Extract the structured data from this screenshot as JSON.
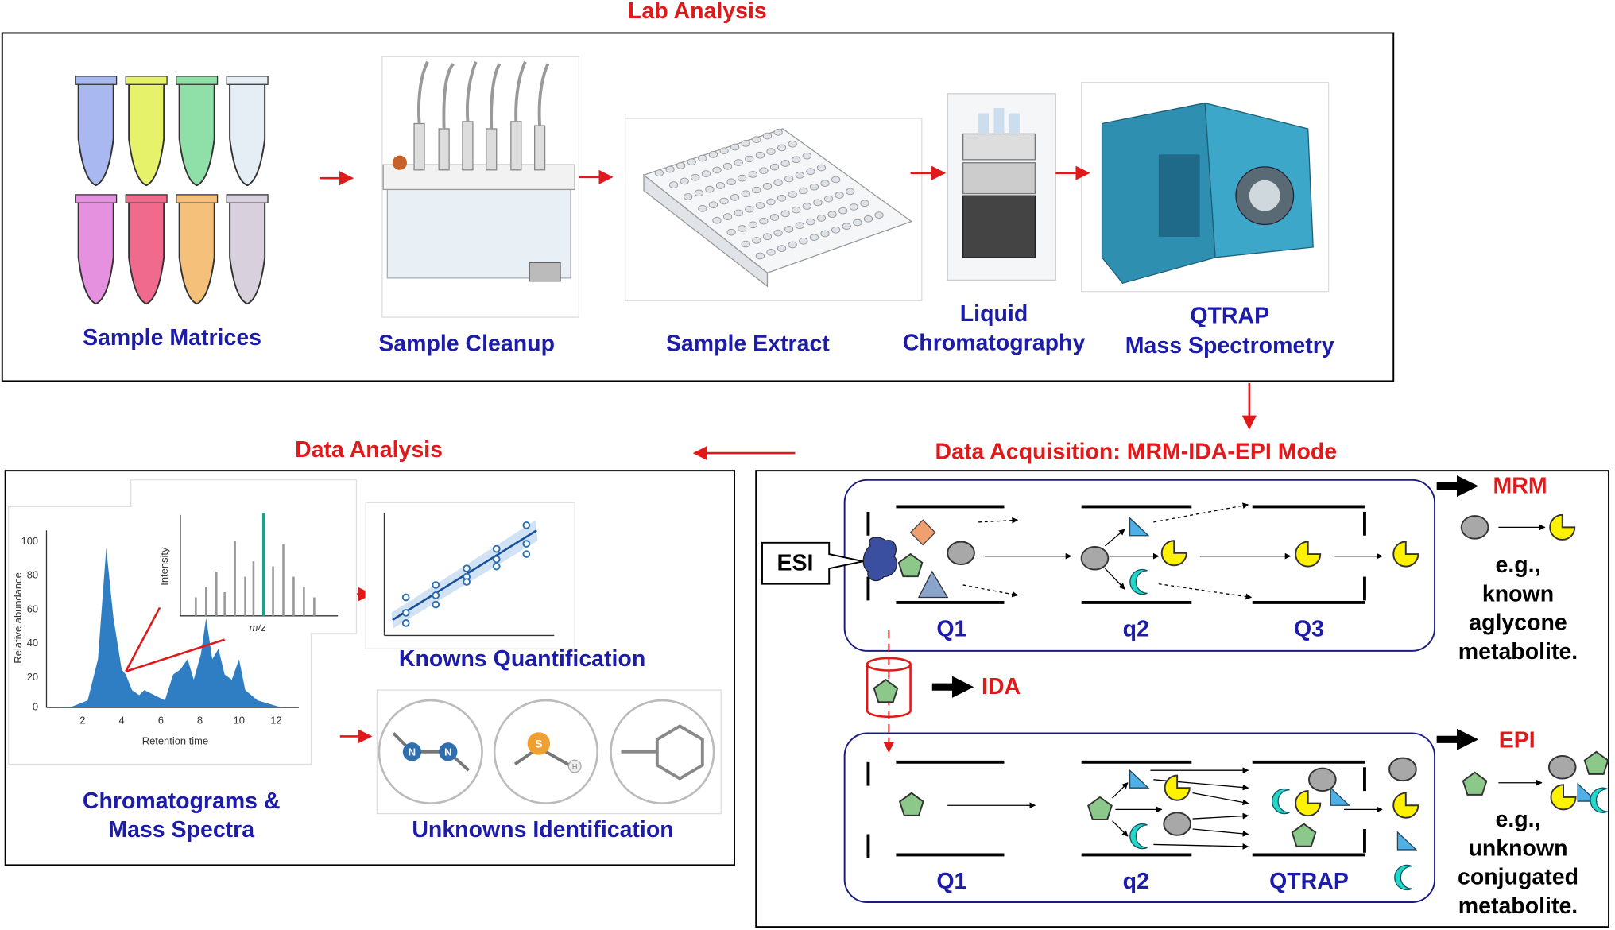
{
  "lab_analysis": {
    "title": "Lab Analysis",
    "sample_matrices": "Sample Matrices",
    "sample_cleanup": "Sample Cleanup",
    "sample_extract": "Sample Extract",
    "liquid_chromatography": [
      "Liquid",
      "Chromatography"
    ],
    "qtrap_ms": [
      "QTRAP",
      "Mass Spectrometry"
    ]
  },
  "data_analysis": {
    "title": "Data Analysis",
    "chromatogram": {
      "y_label": "Relative abundance",
      "x_label": "Retention time",
      "yticks": [
        "0",
        "20",
        "40",
        "60",
        "80",
        "100"
      ],
      "xticks": [
        "2",
        "4",
        "6",
        "8",
        "10",
        "12"
      ]
    },
    "spectrum": {
      "y_label": "Intensity",
      "x_label": "m/z"
    },
    "chromatograms_label": [
      "Chromatograms &",
      "Mass Spectra"
    ],
    "knowns": "Knowns Quantification",
    "unknowns": "Unknowns Identification",
    "atoms": [
      "N",
      "N",
      "S",
      "H"
    ]
  },
  "data_acquisition": {
    "title": "Data Acquisition: MRM-IDA-EPI Mode",
    "esi": "ESI",
    "mrm": {
      "label": "MRM",
      "stages": [
        "Q1",
        "q2",
        "Q3"
      ],
      "note": [
        "e.g.,",
        "known",
        "aglycone",
        "metabolite."
      ]
    },
    "ida": "IDA",
    "epi": {
      "label": "EPI",
      "stages": [
        "Q1",
        "q2",
        "QTRAP"
      ],
      "note": [
        "e.g.,",
        "unknown",
        "conjugated",
        "metabolite."
      ]
    }
  }
}
